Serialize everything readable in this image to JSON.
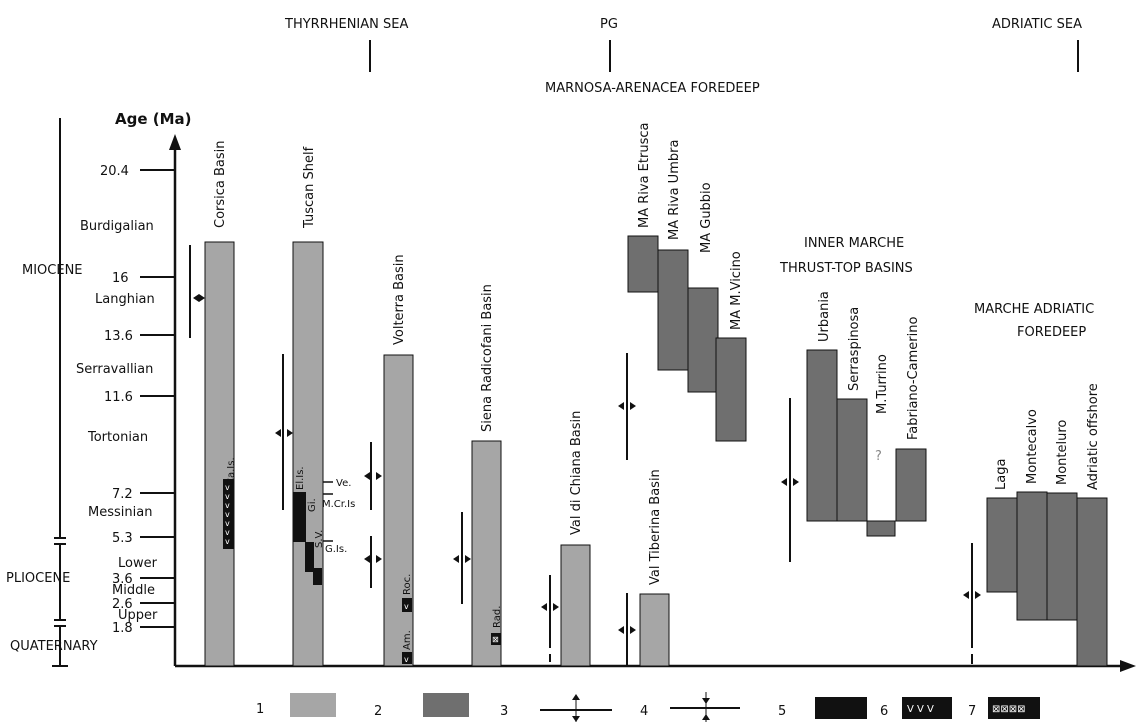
{
  "top_labels": {
    "tyrrhenian": "THYRRHENIAN SEA",
    "pg": "PG",
    "adriatic": "ADRIATIC SEA",
    "marnosa": "MARNOSA-ARENACEA FOREDEEP",
    "inner_marche_1": "INNER MARCHE",
    "inner_marche_2": "THRUST-TOP BASINS",
    "marche_adriatic_1": "MARCHE ADRIATIC",
    "marche_adriatic_2": "FOREDEEP"
  },
  "axis": {
    "title": "Age (Ma)",
    "ticks": [
      "20.4",
      "16",
      "13.6",
      "11.6",
      "7.2",
      "5.3",
      "3.6",
      "2.6",
      "1.8"
    ]
  },
  "stages": {
    "burdigalian": "Burdigalian",
    "langhian": "Langhian",
    "serravallian": "Serravallian",
    "tortonian": "Tortonian",
    "messinian": "Messinian",
    "lower": "Lower",
    "middle": "Middle",
    "upper": "Upper"
  },
  "epochs": {
    "miocene": "MIOCENE",
    "pliocene": "PLIOCENE",
    "quaternary": "QUATERNARY"
  },
  "basins": {
    "corsica": "Corsica Basin",
    "tuscan": "Tuscan Shelf",
    "volterra": "Volterra Basin",
    "siena": "Siena Radicofani Basin",
    "chiana": "Val di Chiana Basin",
    "tiberina": "Val Tiberina Basin",
    "ma_etrusca": "MA Riva Etrusca",
    "ma_umbra": "MA Riva Umbra",
    "ma_gubbio": "MA Gubbio",
    "ma_vicino": "MA M.Vicino",
    "urbania": "Urbania",
    "serraspinosa": "Serraspinosa",
    "turrino": "M.Turrino",
    "fabriano": "Fabriano-Camerino",
    "laga": "Laga",
    "montecalvo": "Montecalvo",
    "monteluro": "Monteluro",
    "adriatic_off": "Adriatic offshore"
  },
  "annotations": {
    "cais": "Ca.Is.",
    "elis": "El.Is.",
    "gi": "Gi.",
    "sv": "S.V.",
    "ve": "Ve.",
    "mcris": "M.Cr.Is",
    "gis": "G.Is.",
    "roc": "Roc.",
    "am": "Am.",
    "rad": "Rad.",
    "question": "?"
  },
  "legend": {
    "n1": "1",
    "n2": "2",
    "n3": "3",
    "n4": "4",
    "n5": "5",
    "n6": "6",
    "n7": "7",
    "v_pattern": "V V V"
  },
  "colors": {
    "light_grey": "#a6a6a6",
    "dark_grey": "#6f6f6f",
    "black": "#111111"
  }
}
